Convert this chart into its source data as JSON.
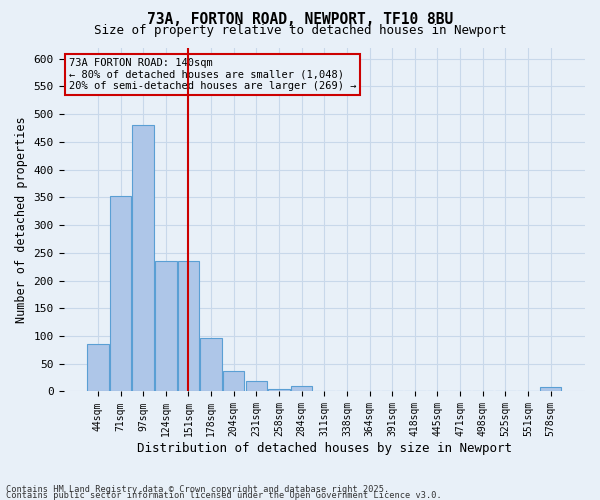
{
  "title_line1": "73A, FORTON ROAD, NEWPORT, TF10 8BU",
  "title_line2": "Size of property relative to detached houses in Newport",
  "xlabel": "Distribution of detached houses by size in Newport",
  "ylabel": "Number of detached properties",
  "bin_labels": [
    "44sqm",
    "71sqm",
    "97sqm",
    "124sqm",
    "151sqm",
    "178sqm",
    "204sqm",
    "231sqm",
    "258sqm",
    "284sqm",
    "311sqm",
    "338sqm",
    "364sqm",
    "391sqm",
    "418sqm",
    "445sqm",
    "471sqm",
    "498sqm",
    "525sqm",
    "551sqm",
    "578sqm"
  ],
  "bar_values": [
    85,
    353,
    480,
    236,
    236,
    96,
    37,
    18,
    5,
    10,
    0,
    0,
    0,
    0,
    0,
    0,
    0,
    0,
    0,
    0,
    8
  ],
  "bar_color": "#aec6e8",
  "bar_edge_color": "#5a9fd4",
  "grid_color": "#c8d8ea",
  "background_color": "#e8f0f8",
  "red_line_x": 4.0,
  "annotation_box_text": "73A FORTON ROAD: 140sqm\n← 80% of detached houses are smaller (1,048)\n20% of semi-detached houses are larger (269) →",
  "annotation_box_color": "#cc0000",
  "footer_line1": "Contains HM Land Registry data © Crown copyright and database right 2025.",
  "footer_line2": "Contains public sector information licensed under the Open Government Licence v3.0.",
  "ylim": [
    0,
    620
  ],
  "yticks": [
    0,
    50,
    100,
    150,
    200,
    250,
    300,
    350,
    400,
    450,
    500,
    550,
    600
  ]
}
